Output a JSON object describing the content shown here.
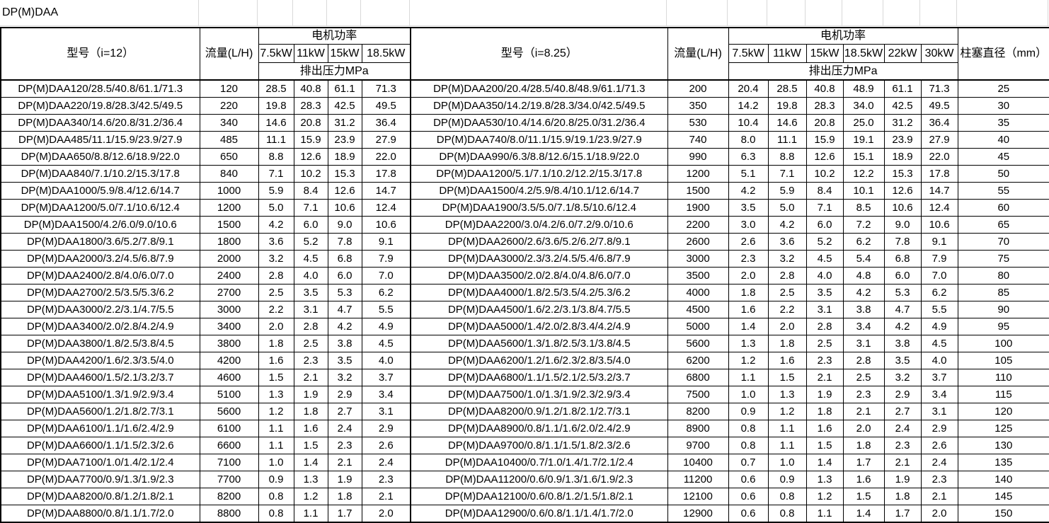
{
  "sheet": {
    "title": "DP(M)DAA"
  },
  "left_table": {
    "model_header": "型号（i=12）",
    "flow_header": "流量(L/H)",
    "power_header": "电机功率",
    "pressure_header": "排出压力MPa",
    "power_cols": [
      "7.5kW",
      "11kW",
      "15kW",
      "18.5kW"
    ],
    "rows": [
      {
        "model": "DP(M)DAA120/28.5/40.8/61.1/71.3",
        "flow": "120",
        "pressures": [
          "28.5",
          "40.8",
          "61.1",
          "71.3"
        ]
      },
      {
        "model": "DP(M)DAA220/19.8/28.3/42.5/49.5",
        "flow": "220",
        "pressures": [
          "19.8",
          "28.3",
          "42.5",
          "49.5"
        ]
      },
      {
        "model": "DP(M)DAA340/14.6/20.8/31.2/36.4",
        "flow": "340",
        "pressures": [
          "14.6",
          "20.8",
          "31.2",
          "36.4"
        ]
      },
      {
        "model": "DP(M)DAA485/11.1/15.9/23.9/27.9",
        "flow": "485",
        "pressures": [
          "11.1",
          "15.9",
          "23.9",
          "27.9"
        ]
      },
      {
        "model": "DP(M)DAA650/8.8/12.6/18.9/22.0",
        "flow": "650",
        "pressures": [
          "8.8",
          "12.6",
          "18.9",
          "22.0"
        ]
      },
      {
        "model": "DP(M)DAA840/7.1/10.2/15.3/17.8",
        "flow": "840",
        "pressures": [
          "7.1",
          "10.2",
          "15.3",
          "17.8"
        ]
      },
      {
        "model": "DP(M)DAA1000/5.9/8.4/12.6/14.7",
        "flow": "1000",
        "pressures": [
          "5.9",
          "8.4",
          "12.6",
          "14.7"
        ]
      },
      {
        "model": "DP(M)DAA1200/5.0/7.1/10.6/12.4",
        "flow": "1200",
        "pressures": [
          "5.0",
          "7.1",
          "10.6",
          "12.4"
        ]
      },
      {
        "model": "DP(M)DAA1500/4.2/6.0/9.0/10.6",
        "flow": "1500",
        "pressures": [
          "4.2",
          "6.0",
          "9.0",
          "10.6"
        ]
      },
      {
        "model": "DP(M)DAA1800/3.6/5.2/7.8/9.1",
        "flow": "1800",
        "pressures": [
          "3.6",
          "5.2",
          "7.8",
          "9.1"
        ]
      },
      {
        "model": "DP(M)DAA2000/3.2/4.5/6.8/7.9",
        "flow": "2000",
        "pressures": [
          "3.2",
          "4.5",
          "6.8",
          "7.9"
        ]
      },
      {
        "model": "DP(M)DAA2400/2.8/4.0/6.0/7.0",
        "flow": "2400",
        "pressures": [
          "2.8",
          "4.0",
          "6.0",
          "7.0"
        ]
      },
      {
        "model": "DP(M)DAA2700/2.5/3.5/5.3/6.2",
        "flow": "2700",
        "pressures": [
          "2.5",
          "3.5",
          "5.3",
          "6.2"
        ]
      },
      {
        "model": "DP(M)DAA3000/2.2/3.1/4.7/5.5",
        "flow": "3000",
        "pressures": [
          "2.2",
          "3.1",
          "4.7",
          "5.5"
        ]
      },
      {
        "model": "DP(M)DAA3400/2.0/2.8/4.2/4.9",
        "flow": "3400",
        "pressures": [
          "2.0",
          "2.8",
          "4.2",
          "4.9"
        ]
      },
      {
        "model": "DP(M)DAA3800/1.8/2.5/3.8/4.5",
        "flow": "3800",
        "pressures": [
          "1.8",
          "2.5",
          "3.8",
          "4.5"
        ]
      },
      {
        "model": "DP(M)DAA4200/1.6/2.3/3.5/4.0",
        "flow": "4200",
        "pressures": [
          "1.6",
          "2.3",
          "3.5",
          "4.0"
        ]
      },
      {
        "model": "DP(M)DAA4600/1.5/2.1/3.2/3.7",
        "flow": "4600",
        "pressures": [
          "1.5",
          "2.1",
          "3.2",
          "3.7"
        ]
      },
      {
        "model": "DP(M)DAA5100/1.3/1.9/2.9/3.4",
        "flow": "5100",
        "pressures": [
          "1.3",
          "1.9",
          "2.9",
          "3.4"
        ]
      },
      {
        "model": "DP(M)DAA5600/1.2/1.8/2.7/3.1",
        "flow": "5600",
        "pressures": [
          "1.2",
          "1.8",
          "2.7",
          "3.1"
        ]
      },
      {
        "model": "DP(M)DAA6100/1.1/1.6/2.4/2.9",
        "flow": "6100",
        "pressures": [
          "1.1",
          "1.6",
          "2.4",
          "2.9"
        ]
      },
      {
        "model": "DP(M)DAA6600/1.1/1.5/2.3/2.6",
        "flow": "6600",
        "pressures": [
          "1.1",
          "1.5",
          "2.3",
          "2.6"
        ]
      },
      {
        "model": "DP(M)DAA7100/1.0/1.4/2.1/2.4",
        "flow": "7100",
        "pressures": [
          "1.0",
          "1.4",
          "2.1",
          "2.4"
        ]
      },
      {
        "model": "DP(M)DAA7700/0.9/1.3/1.9/2.3",
        "flow": "7700",
        "pressures": [
          "0.9",
          "1.3",
          "1.9",
          "2.3"
        ]
      },
      {
        "model": "DP(M)DAA8200/0.8/1.2/1.8/2.1",
        "flow": "8200",
        "pressures": [
          "0.8",
          "1.2",
          "1.8",
          "2.1"
        ]
      },
      {
        "model": "DP(M)DAA8800/0.8/1.1/1.7/2.0",
        "flow": "8800",
        "pressures": [
          "0.8",
          "1.1",
          "1.7",
          "2.0"
        ]
      }
    ]
  },
  "right_table": {
    "model_header": "型号（i=8.25）",
    "flow_header": "流量(L/H)",
    "power_header": "电机功率",
    "pressure_header": "排出压力MPa",
    "plunger_header": "柱塞直径（mm）",
    "power_cols": [
      "7.5kW",
      "11kW",
      "15kW",
      "18.5kW",
      "22kW",
      "30kW"
    ],
    "rows": [
      {
        "model": "DP(M)DAA200/20.4/28.5/40.8/48.9/61.1/71.3",
        "flow": "200",
        "pressures": [
          "20.4",
          "28.5",
          "40.8",
          "48.9",
          "61.1",
          "71.3"
        ],
        "plunger": "25"
      },
      {
        "model": "DP(M)DAA350/14.2/19.8/28.3/34.0/42.5/49.5",
        "flow": "350",
        "pressures": [
          "14.2",
          "19.8",
          "28.3",
          "34.0",
          "42.5",
          "49.5"
        ],
        "plunger": "30"
      },
      {
        "model": "DP(M)DAA530/10.4/14.6/20.8/25.0/31.2/36.4",
        "flow": "530",
        "pressures": [
          "10.4",
          "14.6",
          "20.8",
          "25.0",
          "31.2",
          "36.4"
        ],
        "plunger": "35"
      },
      {
        "model": "DP(M)DAA740/8.0/11.1/15.9/19.1/23.9/27.9",
        "flow": "740",
        "pressures": [
          "8.0",
          "11.1",
          "15.9",
          "19.1",
          "23.9",
          "27.9"
        ],
        "plunger": "40"
      },
      {
        "model": "DP(M)DAA990/6.3/8.8/12.6/15.1/18.9/22.0",
        "flow": "990",
        "pressures": [
          "6.3",
          "8.8",
          "12.6",
          "15.1",
          "18.9",
          "22.0"
        ],
        "plunger": "45"
      },
      {
        "model": "DP(M)DAA1200/5.1/7.1/10.2/12.2/15.3/17.8",
        "flow": "1200",
        "pressures": [
          "5.1",
          "7.1",
          "10.2",
          "12.2",
          "15.3",
          "17.8"
        ],
        "plunger": "50"
      },
      {
        "model": "DP(M)DAA1500/4.2/5.9/8.4/10.1/12.6/14.7",
        "flow": "1500",
        "pressures": [
          "4.2",
          "5.9",
          "8.4",
          "10.1",
          "12.6",
          "14.7"
        ],
        "plunger": "55"
      },
      {
        "model": "DP(M)DAA1900/3.5/5.0/7.1/8.5/10.6/12.4",
        "flow": "1900",
        "pressures": [
          "3.5",
          "5.0",
          "7.1",
          "8.5",
          "10.6",
          "12.4"
        ],
        "plunger": "60"
      },
      {
        "model": "DP(M)DAA2200/3.0/4.2/6.0/7.2/9.0/10.6",
        "flow": "2200",
        "pressures": [
          "3.0",
          "4.2",
          "6.0",
          "7.2",
          "9.0",
          "10.6"
        ],
        "plunger": "65"
      },
      {
        "model": "DP(M)DAA2600/2.6/3.6/5.2/6.2/7.8/9.1",
        "flow": "2600",
        "pressures": [
          "2.6",
          "3.6",
          "5.2",
          "6.2",
          "7.8",
          "9.1"
        ],
        "plunger": "70"
      },
      {
        "model": "DP(M)DAA3000/2.3/3.2/4.5/5.4/6.8/7.9",
        "flow": "3000",
        "pressures": [
          "2.3",
          "3.2",
          "4.5",
          "5.4",
          "6.8",
          "7.9"
        ],
        "plunger": "75"
      },
      {
        "model": "DP(M)DAA3500/2.0/2.8/4.0/4.8/6.0/7.0",
        "flow": "3500",
        "pressures": [
          "2.0",
          "2.8",
          "4.0",
          "4.8",
          "6.0",
          "7.0"
        ],
        "plunger": "80"
      },
      {
        "model": "DP(M)DAA4000/1.8/2.5/3.5/4.2/5.3/6.2",
        "flow": "4000",
        "pressures": [
          "1.8",
          "2.5",
          "3.5",
          "4.2",
          "5.3",
          "6.2"
        ],
        "plunger": "85"
      },
      {
        "model": "DP(M)DAA4500/1.6/2.2/3.1/3.8/4.7/5.5",
        "flow": "4500",
        "pressures": [
          "1.6",
          "2.2",
          "3.1",
          "3.8",
          "4.7",
          "5.5"
        ],
        "plunger": "90"
      },
      {
        "model": "DP(M)DAA5000/1.4/2.0/2.8/3.4/4.2/4.9",
        "flow": "5000",
        "pressures": [
          "1.4",
          "2.0",
          "2.8",
          "3.4",
          "4.2",
          "4.9"
        ],
        "plunger": "95"
      },
      {
        "model": "DP(M)DAA5600/1.3/1.8/2.5/3.1/3.8/4.5",
        "flow": "5600",
        "pressures": [
          "1.3",
          "1.8",
          "2.5",
          "3.1",
          "3.8",
          "4.5"
        ],
        "plunger": "100"
      },
      {
        "model": "DP(M)DAA6200/1.2/1.6/2.3/2.8/3.5/4.0",
        "flow": "6200",
        "pressures": [
          "1.2",
          "1.6",
          "2.3",
          "2.8",
          "3.5",
          "4.0"
        ],
        "plunger": "105"
      },
      {
        "model": "DP(M)DAA6800/1.1/1.5/2.1/2.5/3.2/3.7",
        "flow": "6800",
        "pressures": [
          "1.1",
          "1.5",
          "2.1",
          "2.5",
          "3.2",
          "3.7"
        ],
        "plunger": "110"
      },
      {
        "model": "DP(M)DAA7500/1.0/1.3/1.9/2.3/2.9/3.4",
        "flow": "7500",
        "pressures": [
          "1.0",
          "1.3",
          "1.9",
          "2.3",
          "2.9",
          "3.4"
        ],
        "plunger": "115"
      },
      {
        "model": "DP(M)DAA8200/0.9/1.2/1.8/2.1/2.7/3.1",
        "flow": "8200",
        "pressures": [
          "0.9",
          "1.2",
          "1.8",
          "2.1",
          "2.7",
          "3.1"
        ],
        "plunger": "120"
      },
      {
        "model": "DP(M)DAA8900/0.8/1.1/1.6/2.0/2.4/2.9",
        "flow": "8900",
        "pressures": [
          "0.8",
          "1.1",
          "1.6",
          "2.0",
          "2.4",
          "2.9"
        ],
        "plunger": "125"
      },
      {
        "model": "DP(M)DAA9700/0.8/1.1/1.5/1.8/2.3/2.6",
        "flow": "9700",
        "pressures": [
          "0.8",
          "1.1",
          "1.5",
          "1.8",
          "2.3",
          "2.6"
        ],
        "plunger": "130"
      },
      {
        "model": "DP(M)DAA10400/0.7/1.0/1.4/1.7/2.1/2.4",
        "flow": "10400",
        "pressures": [
          "0.7",
          "1.0",
          "1.4",
          "1.7",
          "2.1",
          "2.4"
        ],
        "plunger": "135"
      },
      {
        "model": "DP(M)DAA11200/0.6/0.9/1.3/1.6/1.9/2.3",
        "flow": "11200",
        "pressures": [
          "0.6",
          "0.9",
          "1.3",
          "1.6",
          "1.9",
          "2.3"
        ],
        "plunger": "140"
      },
      {
        "model": "DP(M)DAA12100/0.6/0.8/1.2/1.5/1.8/2.1",
        "flow": "12100",
        "pressures": [
          "0.6",
          "0.8",
          "1.2",
          "1.5",
          "1.8",
          "2.1"
        ],
        "plunger": "145"
      },
      {
        "model": "DP(M)DAA12900/0.6/0.8/1.1/1.4/1.7/2.0",
        "flow": "12900",
        "pressures": [
          "0.6",
          "0.8",
          "1.1",
          "1.4",
          "1.7",
          "2.0"
        ],
        "plunger": "150"
      }
    ]
  },
  "colors": {
    "border": "#000000",
    "gridline": "#d9d9d9",
    "background": "#ffffff",
    "text": "#000000"
  }
}
